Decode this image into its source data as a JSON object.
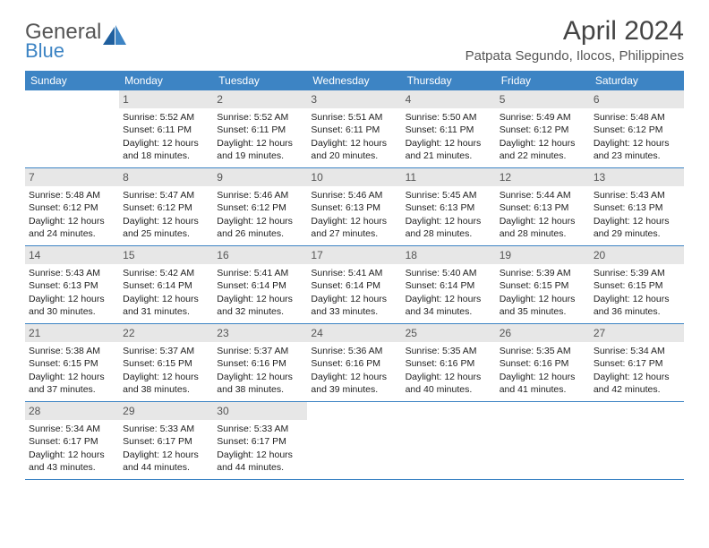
{
  "logo": {
    "word1": "General",
    "word2": "Blue"
  },
  "title": "April 2024",
  "location": "Patpata Segundo, Ilocos, Philippines",
  "colors": {
    "header_bg": "#3d84c4",
    "daynum_bg": "#e7e7e7",
    "text": "#333333",
    "rule": "#3d84c4"
  },
  "day_names": [
    "Sunday",
    "Monday",
    "Tuesday",
    "Wednesday",
    "Thursday",
    "Friday",
    "Saturday"
  ],
  "weeks": [
    [
      null,
      {
        "n": "1",
        "sr": "5:52 AM",
        "ss": "6:11 PM",
        "dl": "12 hours and 18 minutes."
      },
      {
        "n": "2",
        "sr": "5:52 AM",
        "ss": "6:11 PM",
        "dl": "12 hours and 19 minutes."
      },
      {
        "n": "3",
        "sr": "5:51 AM",
        "ss": "6:11 PM",
        "dl": "12 hours and 20 minutes."
      },
      {
        "n": "4",
        "sr": "5:50 AM",
        "ss": "6:11 PM",
        "dl": "12 hours and 21 minutes."
      },
      {
        "n": "5",
        "sr": "5:49 AM",
        "ss": "6:12 PM",
        "dl": "12 hours and 22 minutes."
      },
      {
        "n": "6",
        "sr": "5:48 AM",
        "ss": "6:12 PM",
        "dl": "12 hours and 23 minutes."
      }
    ],
    [
      {
        "n": "7",
        "sr": "5:48 AM",
        "ss": "6:12 PM",
        "dl": "12 hours and 24 minutes."
      },
      {
        "n": "8",
        "sr": "5:47 AM",
        "ss": "6:12 PM",
        "dl": "12 hours and 25 minutes."
      },
      {
        "n": "9",
        "sr": "5:46 AM",
        "ss": "6:12 PM",
        "dl": "12 hours and 26 minutes."
      },
      {
        "n": "10",
        "sr": "5:46 AM",
        "ss": "6:13 PM",
        "dl": "12 hours and 27 minutes."
      },
      {
        "n": "11",
        "sr": "5:45 AM",
        "ss": "6:13 PM",
        "dl": "12 hours and 28 minutes."
      },
      {
        "n": "12",
        "sr": "5:44 AM",
        "ss": "6:13 PM",
        "dl": "12 hours and 28 minutes."
      },
      {
        "n": "13",
        "sr": "5:43 AM",
        "ss": "6:13 PM",
        "dl": "12 hours and 29 minutes."
      }
    ],
    [
      {
        "n": "14",
        "sr": "5:43 AM",
        "ss": "6:13 PM",
        "dl": "12 hours and 30 minutes."
      },
      {
        "n": "15",
        "sr": "5:42 AM",
        "ss": "6:14 PM",
        "dl": "12 hours and 31 minutes."
      },
      {
        "n": "16",
        "sr": "5:41 AM",
        "ss": "6:14 PM",
        "dl": "12 hours and 32 minutes."
      },
      {
        "n": "17",
        "sr": "5:41 AM",
        "ss": "6:14 PM",
        "dl": "12 hours and 33 minutes."
      },
      {
        "n": "18",
        "sr": "5:40 AM",
        "ss": "6:14 PM",
        "dl": "12 hours and 34 minutes."
      },
      {
        "n": "19",
        "sr": "5:39 AM",
        "ss": "6:15 PM",
        "dl": "12 hours and 35 minutes."
      },
      {
        "n": "20",
        "sr": "5:39 AM",
        "ss": "6:15 PM",
        "dl": "12 hours and 36 minutes."
      }
    ],
    [
      {
        "n": "21",
        "sr": "5:38 AM",
        "ss": "6:15 PM",
        "dl": "12 hours and 37 minutes."
      },
      {
        "n": "22",
        "sr": "5:37 AM",
        "ss": "6:15 PM",
        "dl": "12 hours and 38 minutes."
      },
      {
        "n": "23",
        "sr": "5:37 AM",
        "ss": "6:16 PM",
        "dl": "12 hours and 38 minutes."
      },
      {
        "n": "24",
        "sr": "5:36 AM",
        "ss": "6:16 PM",
        "dl": "12 hours and 39 minutes."
      },
      {
        "n": "25",
        "sr": "5:35 AM",
        "ss": "6:16 PM",
        "dl": "12 hours and 40 minutes."
      },
      {
        "n": "26",
        "sr": "5:35 AM",
        "ss": "6:16 PM",
        "dl": "12 hours and 41 minutes."
      },
      {
        "n": "27",
        "sr": "5:34 AM",
        "ss": "6:17 PM",
        "dl": "12 hours and 42 minutes."
      }
    ],
    [
      {
        "n": "28",
        "sr": "5:34 AM",
        "ss": "6:17 PM",
        "dl": "12 hours and 43 minutes."
      },
      {
        "n": "29",
        "sr": "5:33 AM",
        "ss": "6:17 PM",
        "dl": "12 hours and 44 minutes."
      },
      {
        "n": "30",
        "sr": "5:33 AM",
        "ss": "6:17 PM",
        "dl": "12 hours and 44 minutes."
      },
      null,
      null,
      null,
      null
    ]
  ],
  "labels": {
    "sunrise": "Sunrise:",
    "sunset": "Sunset:",
    "daylight": "Daylight:"
  }
}
